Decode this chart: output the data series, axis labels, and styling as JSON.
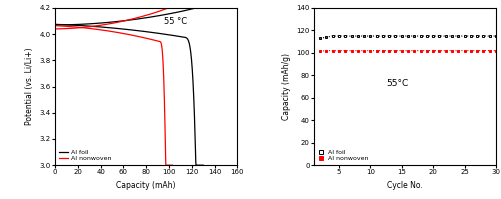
{
  "left_panel": {
    "title": "55 °C",
    "xlabel": "Capacity (mAh)",
    "ylabel": "Potential (vs. Li/Li+)",
    "xlim": [
      0,
      160
    ],
    "ylim": [
      3.0,
      4.2
    ],
    "yticks": [
      3.0,
      3.2,
      3.4,
      3.6,
      3.8,
      4.0,
      4.2
    ],
    "xticks": [
      0,
      20,
      40,
      60,
      80,
      100,
      120,
      140,
      160
    ],
    "legend_items": [
      {
        "label": "Al foil",
        "color": "black"
      },
      {
        "label": "Al nonwoven",
        "color": "red"
      }
    ]
  },
  "right_panel": {
    "title": "55°C",
    "xlabel": "Cycle No.",
    "ylabel": "Capacity (mAh/g)",
    "xlim": [
      1,
      30
    ],
    "ylim": [
      0,
      140
    ],
    "yticks": [
      0,
      20,
      40,
      60,
      80,
      100,
      120,
      140
    ],
    "xticks": [
      5,
      10,
      15,
      20,
      25,
      30
    ],
    "al_foil_capacity": 115,
    "al_nonwoven_capacity": 102,
    "legend_items": [
      {
        "label": "Al foil",
        "color": "black"
      },
      {
        "label": "Al nonwoven",
        "color": "red"
      }
    ]
  }
}
